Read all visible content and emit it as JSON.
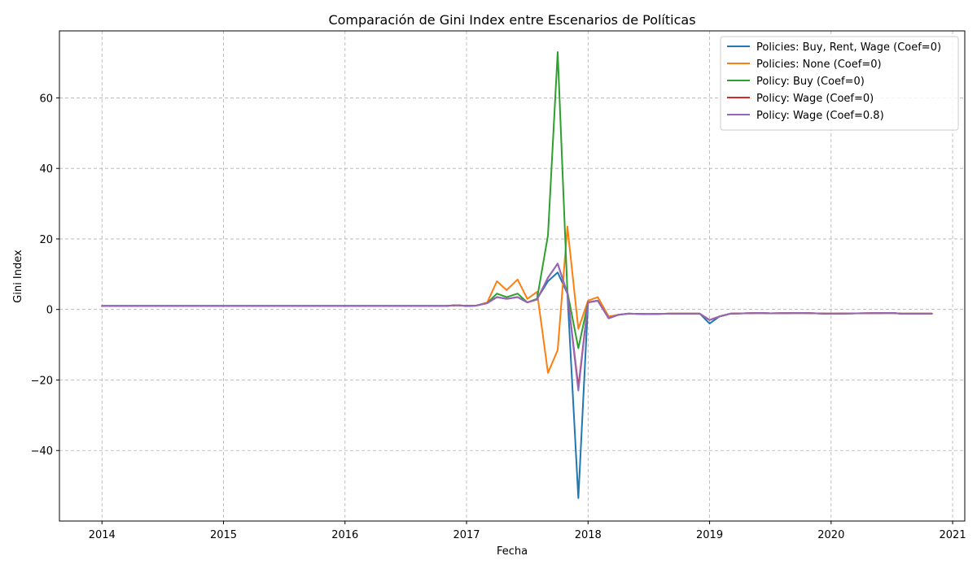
{
  "chart_data": {
    "type": "line",
    "title": "Comparación de Gini Index entre Escenarios de Políticas",
    "xlabel": "Fecha",
    "ylabel": "Gini Index",
    "xlim": [
      2013.65,
      2021.1
    ],
    "ylim": [
      -60,
      79
    ],
    "x_ticks": [
      2014,
      2015,
      2016,
      2017,
      2018,
      2019,
      2020,
      2021
    ],
    "x_tick_labels": [
      "2014",
      "2015",
      "2016",
      "2017",
      "2018",
      "2019",
      "2020",
      "2021"
    ],
    "y_ticks": [
      -40,
      -20,
      0,
      20,
      40,
      60
    ],
    "y_tick_labels": [
      "−40",
      "−20",
      "0",
      "20",
      "40",
      "60"
    ],
    "grid": true,
    "legend_position": "top-right",
    "series": [
      {
        "name": "Policies: Buy, Rent, Wage (Coef=0)",
        "color": "#1f77b4",
        "points": [
          [
            2014.0,
            1.0
          ],
          [
            2016.83,
            1.0
          ],
          [
            2016.92,
            1.2
          ],
          [
            2017.0,
            1.0
          ],
          [
            2017.08,
            1.1
          ],
          [
            2017.17,
            1.8
          ],
          [
            2017.25,
            3.5
          ],
          [
            2017.33,
            3.0
          ],
          [
            2017.42,
            3.5
          ],
          [
            2017.5,
            2.0
          ],
          [
            2017.58,
            3.0
          ],
          [
            2017.67,
            8.0
          ],
          [
            2017.75,
            10.5
          ],
          [
            2017.83,
            4.5
          ],
          [
            2017.92,
            -53.5
          ],
          [
            2018.0,
            2.0
          ],
          [
            2018.08,
            2.5
          ],
          [
            2018.17,
            -2.5
          ],
          [
            2018.25,
            -1.5
          ],
          [
            2018.33,
            -1.2
          ],
          [
            2018.5,
            -1.3
          ],
          [
            2018.67,
            -1.2
          ],
          [
            2018.92,
            -1.2
          ],
          [
            2019.0,
            -4.0
          ],
          [
            2019.08,
            -2.0
          ],
          [
            2019.17,
            -1.2
          ],
          [
            2019.42,
            -1.0
          ],
          [
            2019.5,
            -1.1
          ],
          [
            2019.75,
            -1.0
          ],
          [
            2020.0,
            -1.2
          ],
          [
            2020.5,
            -1.0
          ],
          [
            2020.58,
            -1.2
          ],
          [
            2020.83,
            -1.2
          ]
        ]
      },
      {
        "name": "Policies: None (Coef=0)",
        "color": "#ff7f0e",
        "points": [
          [
            2014.0,
            1.0
          ],
          [
            2016.83,
            1.0
          ],
          [
            2016.92,
            1.2
          ],
          [
            2017.0,
            1.0
          ],
          [
            2017.08,
            1.1
          ],
          [
            2017.17,
            2.0
          ],
          [
            2017.25,
            8.0
          ],
          [
            2017.33,
            5.5
          ],
          [
            2017.42,
            8.5
          ],
          [
            2017.5,
            3.0
          ],
          [
            2017.58,
            5.0
          ],
          [
            2017.67,
            -18.0
          ],
          [
            2017.75,
            -11.5
          ],
          [
            2017.83,
            23.5
          ],
          [
            2017.92,
            -5.5
          ],
          [
            2018.0,
            2.5
          ],
          [
            2018.08,
            3.5
          ],
          [
            2018.17,
            -2.0
          ],
          [
            2018.25,
            -1.5
          ],
          [
            2018.33,
            -1.2
          ],
          [
            2018.5,
            -1.3
          ],
          [
            2018.67,
            -1.2
          ],
          [
            2018.92,
            -1.2
          ],
          [
            2019.0,
            -3.0
          ],
          [
            2019.08,
            -2.0
          ],
          [
            2019.17,
            -1.2
          ],
          [
            2019.42,
            -1.0
          ],
          [
            2019.5,
            -1.1
          ],
          [
            2019.75,
            -1.0
          ],
          [
            2020.0,
            -1.2
          ],
          [
            2020.5,
            -1.0
          ],
          [
            2020.58,
            -1.2
          ],
          [
            2020.83,
            -1.2
          ]
        ]
      },
      {
        "name": "Policy: Buy (Coef=0)",
        "color": "#2ca02c",
        "points": [
          [
            2014.0,
            1.0
          ],
          [
            2016.83,
            1.0
          ],
          [
            2016.92,
            1.2
          ],
          [
            2017.0,
            1.0
          ],
          [
            2017.08,
            1.1
          ],
          [
            2017.17,
            1.8
          ],
          [
            2017.25,
            4.5
          ],
          [
            2017.33,
            3.5
          ],
          [
            2017.42,
            4.5
          ],
          [
            2017.5,
            2.0
          ],
          [
            2017.58,
            3.0
          ],
          [
            2017.67,
            21.0
          ],
          [
            2017.75,
            73.0
          ],
          [
            2017.83,
            5.0
          ],
          [
            2017.92,
            -11.0
          ],
          [
            2018.0,
            2.0
          ],
          [
            2018.08,
            2.5
          ],
          [
            2018.17,
            -2.5
          ],
          [
            2018.25,
            -1.5
          ],
          [
            2018.33,
            -1.2
          ],
          [
            2018.5,
            -1.3
          ],
          [
            2018.67,
            -1.2
          ],
          [
            2018.92,
            -1.2
          ],
          [
            2019.0,
            -3.0
          ],
          [
            2019.08,
            -2.0
          ],
          [
            2019.17,
            -1.2
          ],
          [
            2019.42,
            -1.0
          ],
          [
            2019.5,
            -1.1
          ],
          [
            2019.75,
            -1.0
          ],
          [
            2020.0,
            -1.2
          ],
          [
            2020.5,
            -1.0
          ],
          [
            2020.58,
            -1.2
          ],
          [
            2020.83,
            -1.2
          ]
        ]
      },
      {
        "name": "Policy: Wage (Coef=0)",
        "color": "#d62728",
        "points": [
          [
            2014.0,
            1.0
          ],
          [
            2016.83,
            1.0
          ],
          [
            2016.92,
            1.2
          ],
          [
            2017.0,
            1.0
          ],
          [
            2017.08,
            1.1
          ],
          [
            2017.17,
            1.8
          ],
          [
            2017.25,
            3.5
          ],
          [
            2017.33,
            3.0
          ],
          [
            2017.42,
            3.5
          ],
          [
            2017.5,
            2.0
          ],
          [
            2017.58,
            2.8
          ],
          [
            2017.67,
            9.0
          ],
          [
            2017.75,
            13.0
          ],
          [
            2017.83,
            4.5
          ],
          [
            2017.92,
            -22.0
          ],
          [
            2018.0,
            2.0
          ],
          [
            2018.08,
            2.5
          ],
          [
            2018.17,
            -2.5
          ],
          [
            2018.25,
            -1.5
          ],
          [
            2018.33,
            -1.2
          ],
          [
            2018.5,
            -1.3
          ],
          [
            2018.67,
            -1.2
          ],
          [
            2018.92,
            -1.2
          ],
          [
            2019.0,
            -3.0
          ],
          [
            2019.08,
            -2.0
          ],
          [
            2019.17,
            -1.2
          ],
          [
            2019.42,
            -1.0
          ],
          [
            2019.5,
            -1.1
          ],
          [
            2019.75,
            -1.0
          ],
          [
            2020.0,
            -1.2
          ],
          [
            2020.5,
            -1.0
          ],
          [
            2020.58,
            -1.2
          ],
          [
            2020.83,
            -1.2
          ]
        ]
      },
      {
        "name": "Policy: Wage (Coef=0.8)",
        "color": "#9467bd",
        "points": [
          [
            2014.0,
            1.0
          ],
          [
            2016.83,
            1.0
          ],
          [
            2016.92,
            1.2
          ],
          [
            2017.0,
            1.0
          ],
          [
            2017.08,
            1.1
          ],
          [
            2017.17,
            1.8
          ],
          [
            2017.25,
            3.5
          ],
          [
            2017.33,
            3.0
          ],
          [
            2017.42,
            3.5
          ],
          [
            2017.5,
            2.0
          ],
          [
            2017.58,
            2.8
          ],
          [
            2017.67,
            9.0
          ],
          [
            2017.75,
            13.0
          ],
          [
            2017.83,
            4.5
          ],
          [
            2017.92,
            -23.0
          ],
          [
            2018.0,
            2.0
          ],
          [
            2018.08,
            2.5
          ],
          [
            2018.17,
            -2.5
          ],
          [
            2018.25,
            -1.5
          ],
          [
            2018.33,
            -1.2
          ],
          [
            2018.5,
            -1.3
          ],
          [
            2018.67,
            -1.2
          ],
          [
            2018.92,
            -1.2
          ],
          [
            2019.0,
            -3.0
          ],
          [
            2019.08,
            -2.0
          ],
          [
            2019.17,
            -1.2
          ],
          [
            2019.42,
            -1.0
          ],
          [
            2019.5,
            -1.1
          ],
          [
            2019.75,
            -1.0
          ],
          [
            2020.0,
            -1.2
          ],
          [
            2020.5,
            -1.0
          ],
          [
            2020.58,
            -1.2
          ],
          [
            2020.83,
            -1.2
          ]
        ]
      }
    ]
  }
}
